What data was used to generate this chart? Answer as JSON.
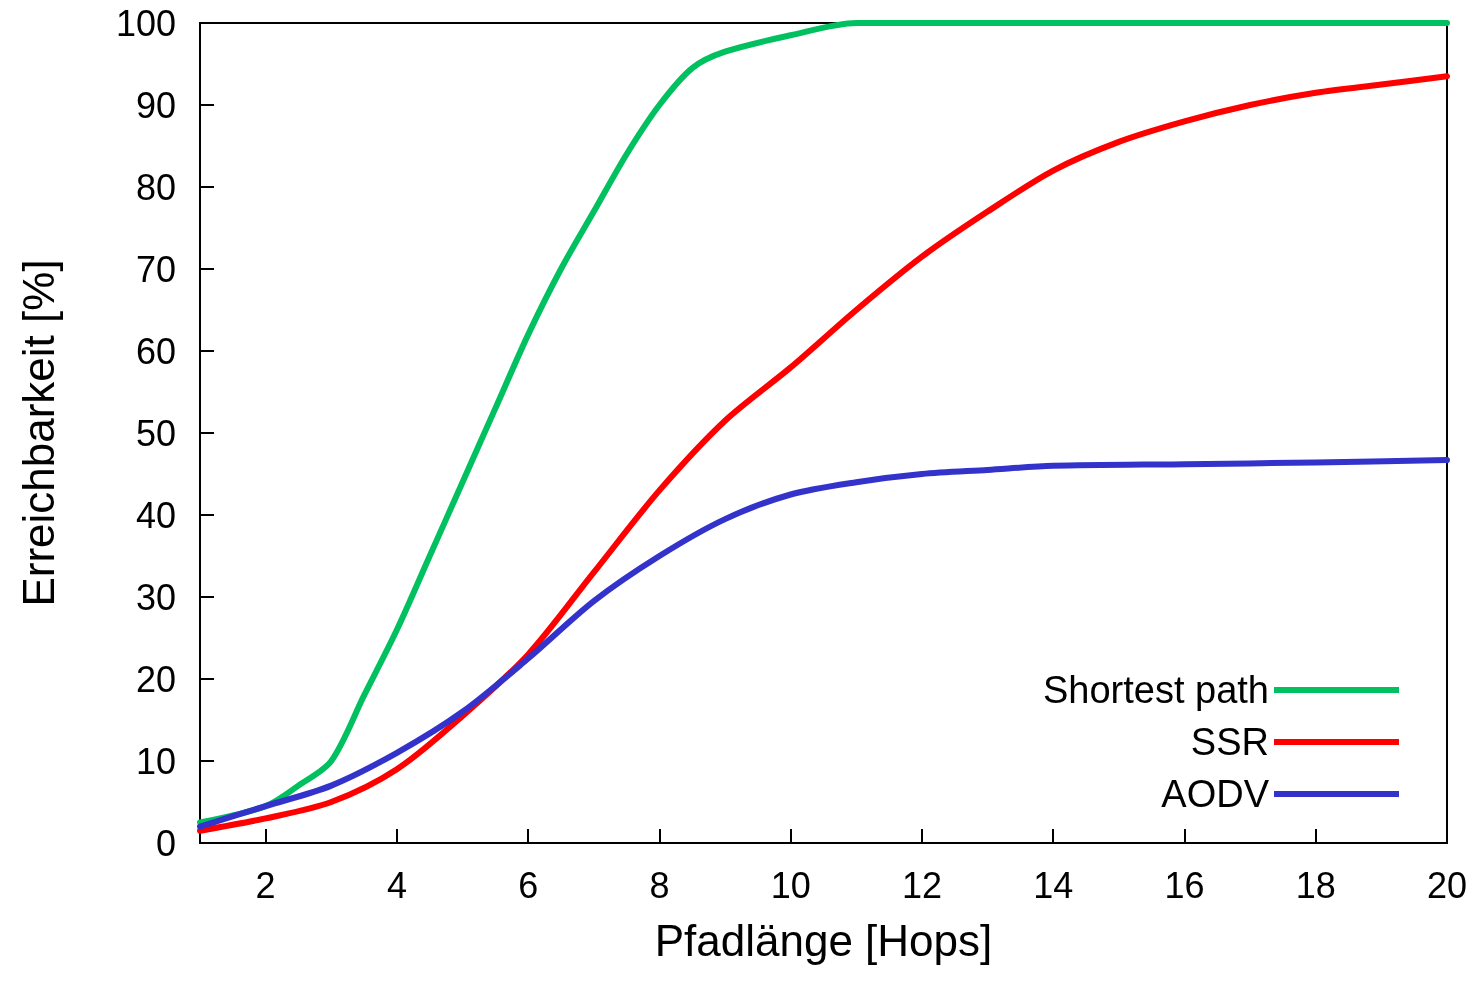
{
  "chart_data": {
    "type": "line",
    "xlabel": "Pfadlänge [Hops]",
    "ylabel": "Erreichbarkeit [%]",
    "xlim": [
      1,
      20
    ],
    "xticks": [
      2,
      4,
      6,
      8,
      10,
      12,
      14,
      16,
      18,
      20
    ],
    "ylim": [
      0,
      100
    ],
    "yticks": [
      0,
      10,
      20,
      30,
      40,
      50,
      60,
      70,
      80,
      90,
      100
    ],
    "grid": false,
    "legend": "bottom right",
    "marker": "none",
    "line_style": "solid",
    "series": [
      {
        "name": "Shortest path",
        "color": "#00c060",
        "x": [
          1,
          2,
          2.5,
          3,
          3.5,
          4,
          4.5,
          5,
          5.5,
          6,
          6.5,
          7,
          7.5,
          8,
          8.5,
          9,
          10,
          11,
          12,
          14,
          16,
          18,
          20
        ],
        "values": [
          2.5,
          4.5,
          7,
          10,
          18,
          26,
          35,
          44,
          53,
          62,
          70,
          77,
          84,
          90,
          94.5,
          96.5,
          98.5,
          100,
          100,
          100,
          100,
          100,
          100
        ]
      },
      {
        "name": "SSR",
        "color": "#ff0000",
        "x": [
          1,
          2,
          3,
          4,
          5,
          6,
          7,
          8,
          9,
          10,
          11,
          12,
          13,
          14,
          15,
          16,
          17,
          18,
          19,
          20
        ],
        "values": [
          1.5,
          3,
          5,
          9,
          15.5,
          23,
          33,
          43,
          51.5,
          58,
          65,
          71.5,
          77,
          82,
          85.5,
          88,
          90,
          91.5,
          92.5,
          93.5
        ]
      },
      {
        "name": "AODV",
        "color": "#3333cc",
        "x": [
          1,
          2,
          3,
          4,
          5,
          6,
          7,
          8,
          9,
          10,
          11,
          12,
          13,
          14,
          16,
          18,
          20
        ],
        "values": [
          2,
          4.5,
          7,
          11,
          16,
          22.5,
          29.5,
          35,
          39.5,
          42.5,
          44,
          45,
          45.5,
          46,
          46.2,
          46.4,
          46.7
        ]
      }
    ]
  }
}
